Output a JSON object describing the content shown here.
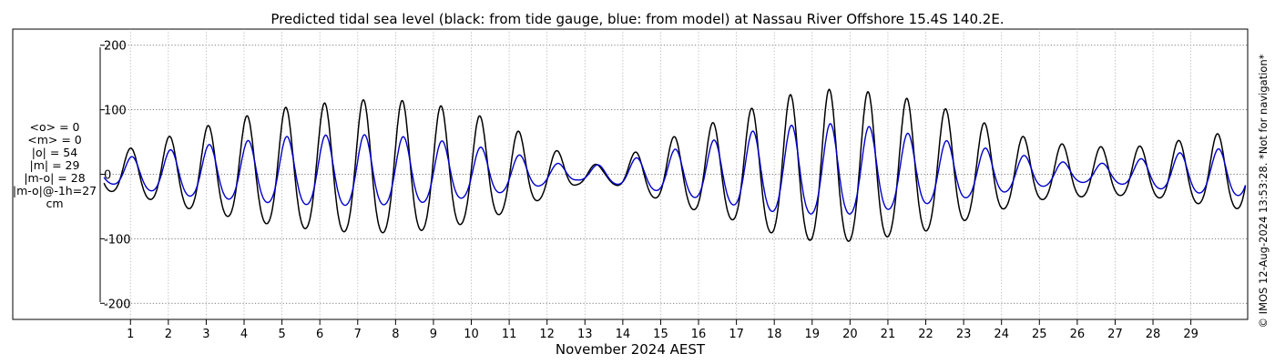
{
  "chart_data": {
    "type": "line",
    "title": "Predicted tidal sea level (black: from tide gauge, blue: from model) at Nassau River Offshore 15.4S 140.2E.",
    "xlabel": "November 2024 AEST",
    "ylabel": "",
    "xlim": [
      0.2,
      30.5
    ],
    "ylim": [
      -225,
      225
    ],
    "yticks": [
      -200,
      -100,
      0,
      100,
      200
    ],
    "ytick_labels": [
      "-200",
      "-100",
      "0",
      "100",
      "200"
    ],
    "xticks": [
      1,
      2,
      3,
      4,
      5,
      6,
      7,
      8,
      9,
      10,
      11,
      12,
      13,
      14,
      15,
      16,
      17,
      18,
      19,
      20,
      21,
      22,
      23,
      24,
      25,
      26,
      27,
      28,
      29
    ],
    "xtick_labels": [
      "1",
      "2",
      "3",
      "4",
      "5",
      "6",
      "7",
      "8",
      "9",
      "10",
      "11",
      "12",
      "13",
      "14",
      "15",
      "16",
      "17",
      "18",
      "19",
      "20",
      "21",
      "22",
      "23",
      "24",
      "25",
      "26",
      "27",
      "28",
      "29"
    ],
    "grid": true,
    "series": [
      {
        "name": "tide gauge",
        "color": "#000000",
        "amp_x": [
          0.3,
          1.0,
          2.5,
          4.0,
          5.0,
          6.0,
          7.0,
          8.0,
          9.0,
          10.0,
          11.0,
          12.0,
          12.8,
          13.5,
          14.3,
          15.0,
          16.0,
          17.0,
          18.0,
          19.0,
          20.0,
          21.0,
          22.0,
          23.0,
          24.0,
          25.0,
          26.0,
          27.0,
          28.0,
          29.0,
          30.4
        ],
        "amp_values": [
          28,
          36,
          60,
          80,
          92,
          98,
          103,
          103,
          97,
          85,
          66,
          40,
          18,
          12,
          30,
          45,
          65,
          82,
          105,
          117,
          118,
          110,
          100,
          82,
          62,
          45,
          40,
          37,
          40,
          50,
          62
        ]
      },
      {
        "name": "model",
        "color": "#0000cc",
        "amp_x": [
          0.3,
          1.0,
          2.5,
          4.0,
          5.0,
          6.0,
          7.0,
          8.0,
          9.0,
          10.0,
          11.0,
          12.0,
          12.8,
          13.5,
          14.3,
          15.0,
          16.0,
          17.0,
          18.0,
          19.0,
          20.0,
          21.0,
          22.0,
          23.0,
          24.0,
          25.0,
          26.0,
          27.0,
          28.0,
          29.0,
          30.4
        ],
        "amp_values": [
          14,
          24,
          38,
          46,
          52,
          54,
          55,
          53,
          48,
          40,
          30,
          18,
          10,
          14,
          22,
          30,
          42,
          55,
          66,
          70,
          70,
          62,
          52,
          42,
          32,
          22,
          14,
          16,
          24,
          32,
          38
        ]
      }
    ]
  },
  "stats": {
    "mean_obs": "<o> = 0",
    "mean_model": "<m> = 0",
    "abs_obs": "|o| = 54",
    "abs_model": "|m| = 29",
    "abs_diff": "|m-o| = 28",
    "abs_diff_lag": "|m-o|@-1h=27",
    "unit": "cm"
  },
  "side_note": "© IMOS 12-Aug-2024 13:53:28. *Not for navigation*"
}
